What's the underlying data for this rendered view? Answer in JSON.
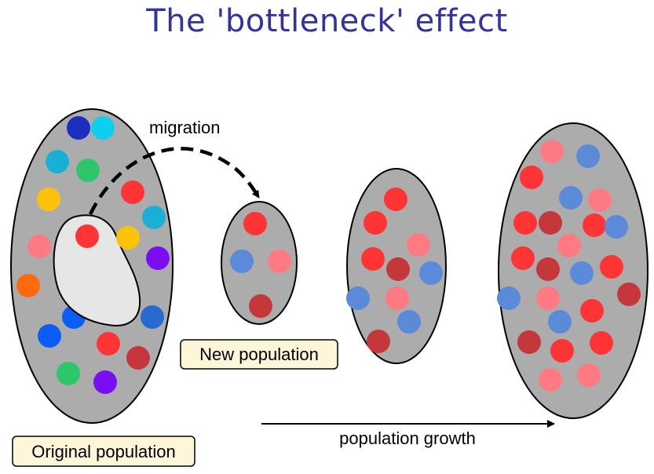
{
  "title": "The 'bottleneck' effect",
  "labels": {
    "migration": "migration",
    "new_population": "New population",
    "original_population": "Original population",
    "population_growth": "population growth"
  },
  "colors": {
    "population_fill": "#acacac",
    "sample_fill": "#e6e6e6",
    "label_box_fill": "#fdf6d8",
    "title": "#33339e"
  },
  "populations": [
    {
      "name": "original-population",
      "dots": [
        "#1c2ec0",
        "#0ecff0",
        "#1ab0d6",
        "#2ec66a",
        "#ff3434",
        "#ffc20a",
        "#1ab0d6",
        "#ff7a82",
        "#ff3434",
        "#ffc20a",
        "#7a0ef0",
        "#ff6a10",
        "#5b8ad8",
        "#ff7a82",
        "#c4373a",
        "#0a5ef6",
        "#2a6ad0",
        "#0a5ef6",
        "#ff3434",
        "#c4373a",
        "#2ec66a",
        "#7a0ef0"
      ]
    },
    {
      "name": "new-population",
      "dots": [
        "#ff3434",
        "#5b8ad8",
        "#ff7a82",
        "#c4373a"
      ]
    },
    {
      "name": "intermediate-population",
      "dots": [
        "#ff3434",
        "#ff3434",
        "#ff7a82",
        "#ff3434",
        "#c4373a",
        "#5b8ad8",
        "#5b8ad8",
        "#ff7a82",
        "#5b8ad8",
        "#c4373a"
      ]
    },
    {
      "name": "grown-population",
      "dots": [
        "#ff7a82",
        "#5b8ad8",
        "#ff3434",
        "#5b8ad8",
        "#ff7a82",
        "#ff3434",
        "#c4373a",
        "#ff3434",
        "#5b8ad8",
        "#ff7a82",
        "#ff3434",
        "#c4373a",
        "#5b8ad8",
        "#ff3434",
        "#5b8ad8",
        "#ff7a82",
        "#ff3434",
        "#c4373a",
        "#5b8ad8",
        "#c4373a",
        "#ff3434",
        "#ff3434",
        "#ff7a82",
        "#ff7a82"
      ]
    }
  ]
}
